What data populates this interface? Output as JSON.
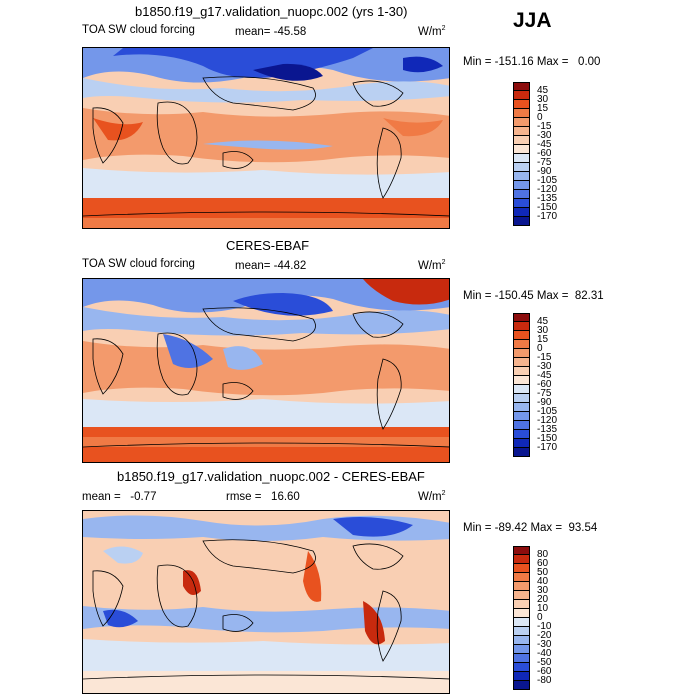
{
  "season": "JJA",
  "panels": [
    {
      "title": "b1850.f19_g17.validation_nuopc.002 (yrs 1-30)",
      "variable": "TOA SW cloud forcing",
      "stat_text": "mean= -45.58",
      "units_base": "W/m",
      "units_exp": "2",
      "minmax": "Min = -151.16 Max =   0.00",
      "colorbar": {
        "labels": [
          "45",
          "30",
          "15",
          "0",
          "-15",
          "-30",
          "-45",
          "-60",
          "-75",
          "-90",
          "-105",
          "-120",
          "-135",
          "-150",
          "-170"
        ],
        "colors": [
          "#8c0d0d",
          "#c82a0e",
          "#e8521f",
          "#f07a45",
          "#f39a6c",
          "#f6b48e",
          "#f9cfb3",
          "#fbe6d6",
          "#dbe7f6",
          "#bad0f2",
          "#98b6ef",
          "#7497ea",
          "#4f73e3",
          "#2a4dd8",
          "#1028b8",
          "#0a1690"
        ]
      }
    },
    {
      "title": "CERES-EBAF",
      "variable": "TOA SW cloud forcing",
      "stat_text": "mean= -44.82",
      "units_base": "W/m",
      "units_exp": "2",
      "minmax": "Min = -150.45 Max =  82.31",
      "colorbar": {
        "labels": [
          "45",
          "30",
          "15",
          "0",
          "-15",
          "-30",
          "-45",
          "-60",
          "-75",
          "-90",
          "-105",
          "-120",
          "-135",
          "-150",
          "-170"
        ],
        "colors": [
          "#8c0d0d",
          "#c82a0e",
          "#e8521f",
          "#f07a45",
          "#f39a6c",
          "#f6b48e",
          "#f9cfb3",
          "#fbe6d6",
          "#dbe7f6",
          "#bad0f2",
          "#98b6ef",
          "#7497ea",
          "#4f73e3",
          "#2a4dd8",
          "#1028b8",
          "#0a1690"
        ]
      }
    },
    {
      "title": "b1850.f19_g17.validation_nuopc.002 - CERES-EBAF",
      "mean_text": "mean =   -0.77",
      "rmse_text": "rmse =   16.60",
      "units_base": "W/m",
      "units_exp": "2",
      "minmax": "Min = -89.42 Max =  93.54",
      "colorbar": {
        "labels": [
          "80",
          "60",
          "50",
          "40",
          "30",
          "20",
          "10",
          "0",
          "-10",
          "-20",
          "-30",
          "-40",
          "-50",
          "-60",
          "-80"
        ],
        "colors": [
          "#8c0d0d",
          "#c82a0e",
          "#e8521f",
          "#f07a45",
          "#f39a6c",
          "#f6b48e",
          "#f9cfb3",
          "#fbe6d6",
          "#dbe7f6",
          "#bad0f2",
          "#98b6ef",
          "#7497ea",
          "#4f73e3",
          "#2a4dd8",
          "#1028b8",
          "#0a1690"
        ]
      }
    }
  ]
}
